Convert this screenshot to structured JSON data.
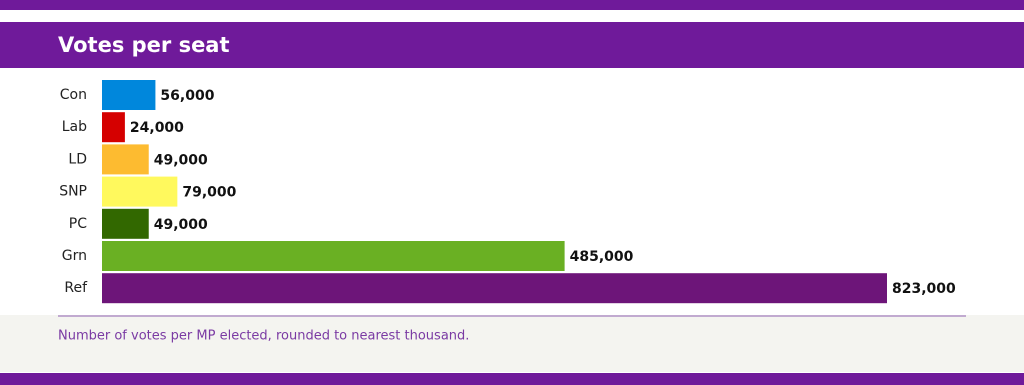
{
  "chart_data": {
    "type": "bar",
    "orientation": "horizontal",
    "title": "Votes per seat",
    "categories": [
      "Con",
      "Lab",
      "LD",
      "SNP",
      "PC",
      "Grn",
      "Ref"
    ],
    "values": [
      56000,
      24000,
      49000,
      79000,
      49000,
      485000,
      823000
    ],
    "value_labels": [
      "56,000",
      "24,000",
      "49,000",
      "79,000",
      "49,000",
      "485,000",
      "823,000"
    ],
    "colors": [
      "#0087dc",
      "#d50000",
      "#fdbb30",
      "#fff95d",
      "#326800",
      "#6ab023",
      "#6d1579"
    ],
    "note": "Number of votes per MP elected, rounded to nearest thousand."
  }
}
